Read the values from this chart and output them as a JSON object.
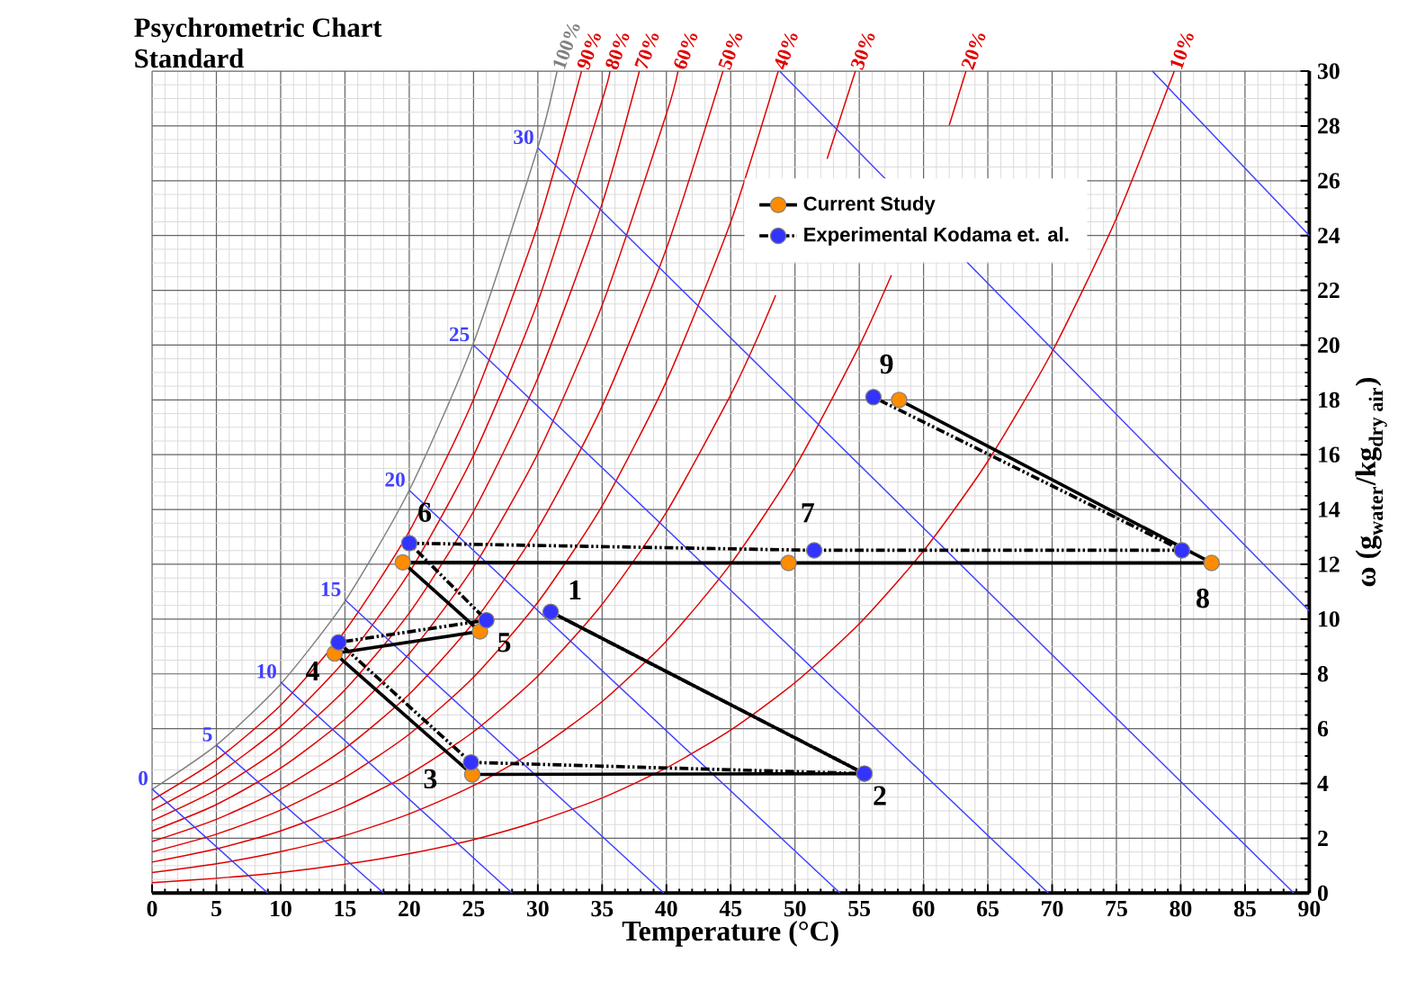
{
  "chart_data": {
    "type": "line",
    "title": "Psychrometric Chart",
    "subtitle": "Standard",
    "xlabel": "Temperature (°C)",
    "ylabel": "\\text{ω (g}_{\\text{water}}\\text{/kg}_{\\text{dry air}}\\text{)}",
    "xlim": [
      0,
      90
    ],
    "ylim": [
      0,
      30
    ],
    "xticks": [
      0,
      5,
      10,
      15,
      20,
      25,
      30,
      35,
      40,
      45,
      50,
      55,
      60,
      65,
      70,
      75,
      80,
      85,
      90
    ],
    "yticks": [
      0,
      2,
      4,
      6,
      8,
      10,
      12,
      14,
      16,
      18,
      20,
      22,
      24,
      26,
      28,
      30
    ],
    "grid": true,
    "legend": "top",
    "series": [
      {
        "name": "100%",
        "color": "#808080",
        "marker": "none",
        "x": [
          0,
          5,
          10,
          15,
          20,
          25,
          30,
          31.5
        ],
        "values": [
          3.78,
          5.4,
          7.63,
          10.65,
          14.7,
          20.08,
          27.21,
          30
        ]
      },
      {
        "name": "90%",
        "color": "#e00000",
        "marker": "none",
        "x": [
          0,
          5,
          10,
          15,
          20,
          25,
          30,
          33.4
        ],
        "values": [
          3.4,
          4.86,
          6.86,
          9.57,
          13.2,
          18.02,
          24.38,
          30
        ]
      },
      {
        "name": "80%",
        "color": "#e00000",
        "marker": "none",
        "x": [
          0,
          5,
          10,
          15,
          20,
          25,
          30,
          35,
          35.6
        ],
        "values": [
          3.02,
          4.32,
          6.09,
          8.49,
          11.7,
          15.97,
          21.58,
          28.93,
          30
        ]
      },
      {
        "name": "70%",
        "color": "#e00000",
        "marker": "none",
        "x": [
          0,
          5,
          10,
          15,
          20,
          25,
          30,
          35,
          37.9
        ],
        "values": [
          2.64,
          3.77,
          5.32,
          7.42,
          10.22,
          13.93,
          18.8,
          25.16,
          30
        ]
      },
      {
        "name": "60%",
        "color": "#e00000",
        "marker": "none",
        "x": [
          0,
          5,
          10,
          15,
          20,
          25,
          30,
          35,
          40,
          40.9
        ],
        "values": [
          2.26,
          3.23,
          4.56,
          6.35,
          8.74,
          11.9,
          16.04,
          21.45,
          28.44,
          30
        ]
      },
      {
        "name": "50%",
        "color": "#e00000",
        "marker": "none",
        "x": [
          0,
          5,
          10,
          15,
          20,
          25,
          30,
          35,
          40,
          44.4
        ],
        "values": [
          1.88,
          2.69,
          3.79,
          5.28,
          7.26,
          9.88,
          13.31,
          17.77,
          23.52,
          30
        ]
      },
      {
        "name": "40%",
        "color": "#e00000",
        "marker": "none",
        "x": [
          0,
          5,
          10,
          15,
          20,
          25,
          30,
          35,
          40,
          45,
          48.7
        ],
        "values": [
          1.5,
          2.15,
          3.03,
          4.22,
          5.8,
          7.88,
          10.61,
          14.13,
          18.68,
          24.49,
          30
        ]
      },
      {
        "name": "30%",
        "color": "#e00000",
        "marker": "none",
        "x": [
          0,
          5,
          10,
          15,
          20,
          25,
          30,
          35,
          40,
          45,
          47,
          48.5,
          50,
          52.5,
          54.7
        ],
        "values": [
          1.13,
          1.61,
          2.27,
          3.16,
          4.34,
          5.89,
          7.92,
          10.54,
          13.9,
          18.18,
          20.18,
          21.82,
          null,
          26.8,
          30
        ]
      },
      {
        "name": "20%",
        "color": "#e00000",
        "marker": "none",
        "x": [
          0,
          5,
          10,
          15,
          20,
          25,
          30,
          35,
          40,
          45,
          50,
          55,
          57.5,
          60,
          62,
          63.3
        ],
        "values": [
          0.75,
          1.07,
          1.51,
          2.1,
          2.89,
          3.92,
          5.26,
          6.99,
          9.2,
          12.01,
          15.54,
          19.97,
          22.55,
          null,
          28.03,
          30
        ]
      },
      {
        "name": "10%",
        "color": "#e00000",
        "marker": "none",
        "x": [
          0,
          5,
          10,
          15,
          20,
          25,
          30,
          35,
          40,
          45,
          50,
          55,
          60,
          65,
          70,
          75,
          79.5
        ],
        "values": [
          0.38,
          0.54,
          0.75,
          1.05,
          1.44,
          1.95,
          2.62,
          3.47,
          4.57,
          5.95,
          7.68,
          9.83,
          12.49,
          15.76,
          19.76,
          24.63,
          30
        ]
      },
      {
        "name": "0",
        "color": "#4040ff",
        "marker": "none",
        "x": [
          0,
          9
        ],
        "values": [
          3.8,
          0
        ]
      },
      {
        "name": "5",
        "color": "#4040ff",
        "marker": "none",
        "x": [
          5,
          18
        ],
        "values": [
          5.4,
          0
        ]
      },
      {
        "name": "10",
        "color": "#4040ff",
        "marker": "none",
        "x": [
          10,
          28
        ],
        "values": [
          7.7,
          0
        ]
      },
      {
        "name": "15",
        "color": "#4040ff",
        "marker": "none",
        "x": [
          15,
          39.8
        ],
        "values": [
          10.7,
          0
        ]
      },
      {
        "name": "20",
        "color": "#4040ff",
        "marker": "none",
        "x": [
          20,
          53.5
        ],
        "values": [
          14.7,
          0
        ]
      },
      {
        "name": "25",
        "color": "#4040ff",
        "marker": "none",
        "x": [
          25,
          69.7
        ],
        "values": [
          20.0,
          0
        ]
      },
      {
        "name": "30",
        "color": "#4040ff",
        "marker": "none",
        "x": [
          30,
          88.8
        ],
        "values": [
          27.2,
          0
        ]
      },
      {
        "color": "#4040ff",
        "marker": "none",
        "x": [
          48.8,
          90
        ],
        "values": [
          30,
          10.3
        ]
      },
      {
        "color": "#4040ff",
        "marker": "none",
        "x": [
          77.8,
          90
        ],
        "values": [
          30,
          24
        ]
      },
      {
        "name": "Current Study",
        "color": "#ff8c00",
        "marker": "circle",
        "line_style": "solid",
        "x": [
          31.0,
          55.4,
          24.9,
          14.2,
          25.5,
          19.5,
          49.5,
          82.4,
          58.1
        ],
        "values": [
          10.26,
          4.36,
          4.33,
          8.75,
          9.55,
          12.07,
          12.05,
          12.05,
          18.0
        ]
      },
      {
        "name": "Experimental Kodama et. al.",
        "color": "#3333ff",
        "marker": "circle",
        "line_style": "dashed",
        "x": [
          31.0,
          55.4,
          24.8,
          14.5,
          26.0,
          20.0,
          51.5,
          80.1,
          56.1
        ],
        "values": [
          10.26,
          4.36,
          4.77,
          9.15,
          9.96,
          12.77,
          12.51,
          12.51,
          18.1
        ]
      }
    ],
    "annotations": [
      {
        "text": "1",
        "x": 31.0,
        "y": 10.26
      },
      {
        "text": "2",
        "x": 55.4,
        "y": 4.36
      },
      {
        "text": "3",
        "x": 24.9,
        "y": 4.33
      },
      {
        "text": "4",
        "x": 14.2,
        "y": 8.75
      },
      {
        "text": "5",
        "x": 25.5,
        "y": 9.55
      },
      {
        "text": "6",
        "x": 20.0,
        "y": 12.77
      },
      {
        "text": "7",
        "x": 51.5,
        "y": 12.51
      },
      {
        "text": "8",
        "x": 82.4,
        "y": 12.05
      },
      {
        "text": "9",
        "x": 56.1,
        "y": 18.1
      }
    ]
  }
}
